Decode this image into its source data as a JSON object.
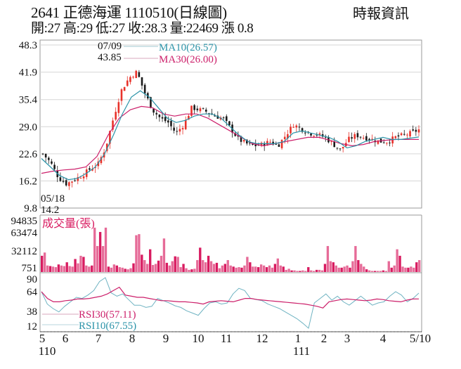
{
  "header": {
    "title": "2641  正德海運 1110510(日線圖)",
    "brand": "時報資訊",
    "ohlc_line": "開:27 高:29 低:27 收:28.3 量:22469 漲 0.8"
  },
  "colors": {
    "up": "#e8322a",
    "down": "#1a1a1a",
    "ma10": "#2b93a8",
    "ma30": "#cc1f6a",
    "volume": "#d81b60",
    "rsi30": "#cc1f6a",
    "rsi10": "#6fb3c2",
    "grid": "#d6d6d6"
  },
  "chart_data": [
    {
      "type": "candlestick",
      "title": "2641 正德海運 1110510(日線圖)",
      "panel": "price",
      "y_ticks": [
        48.3,
        41.9,
        35.4,
        29.0,
        22.6,
        16.2,
        9.8
      ],
      "ylim": [
        9.8,
        48.3
      ],
      "annotations": [
        {
          "label": "07/09",
          "value": "43.85",
          "type": "high"
        },
        {
          "label": "05/18",
          "value": "14.2",
          "type": "low"
        }
      ],
      "legend": [
        {
          "name": "MA10",
          "value": "MA10(26.57)"
        },
        {
          "name": "MA30",
          "value": "MA30(26.00)"
        }
      ],
      "last": {
        "open": 27,
        "high": 29,
        "low": 27,
        "close": 28.3,
        "volume": 22469,
        "change": 0.8
      },
      "x": [
        "5",
        "6",
        "7",
        "8",
        "9",
        "10",
        "11",
        "12",
        "1",
        "2",
        "3",
        "4",
        "5/10"
      ],
      "close_approx": [
        22.6,
        20.5,
        17.0,
        15.5,
        16.5,
        17.5,
        19.0,
        20.0,
        24.0,
        31.0,
        37.5,
        40.5,
        42.0,
        37.0,
        33.0,
        31.0,
        30.0,
        27.5,
        29.5,
        33.5,
        33.0,
        32.5,
        31.5,
        31.0,
        28.5,
        26.0,
        25.0,
        24.5,
        24.8,
        25.5,
        24.5,
        27.0,
        29.5,
        28.5,
        27.5,
        27.2,
        26.5,
        25.0,
        23.5,
        26.0,
        27.0,
        26.5,
        26.0,
        25.5,
        25.5,
        26.5,
        27.0,
        27.5,
        28.3
      ],
      "ma10_approx": [
        21.5,
        19.5,
        17.5,
        16.5,
        16.8,
        18.0,
        19.5,
        22.5,
        27.0,
        32.0,
        36.0,
        37.5,
        36.0,
        33.5,
        31.0,
        30.0,
        30.5,
        31.5,
        32.0,
        32.0,
        31.0,
        29.0,
        27.0,
        25.5,
        25.0,
        25.0,
        25.0,
        25.5,
        27.5,
        28.0,
        27.5,
        27.0,
        26.5,
        25.5,
        24.0,
        24.5,
        25.5,
        26.0,
        26.5,
        26.0,
        26.0,
        26.3,
        26.57
      ],
      "ma30_approx": [
        18.0,
        18.5,
        18.8,
        19.0,
        19.5,
        22.0,
        27.0,
        31.0,
        33.0,
        33.8,
        33.5,
        32.0,
        31.5,
        32.0,
        32.0,
        31.0,
        29.5,
        28.0,
        26.5,
        25.0,
        24.5,
        25.0,
        25.5,
        26.0,
        26.5,
        26.5,
        25.8,
        25.0,
        24.5,
        24.8,
        25.5,
        25.8,
        26.0,
        26.0,
        26.0
      ]
    },
    {
      "type": "bar",
      "panel": "volume",
      "title": "成交量(張)",
      "y_ticks": [
        94835,
        63474,
        32112,
        751
      ],
      "ylim": [
        751,
        94835
      ],
      "values_approx": [
        30000,
        36000,
        12000,
        11000,
        10000,
        9000,
        14000,
        12000,
        11000,
        18000,
        11000,
        10000,
        24000,
        16000,
        30000,
        28000,
        12000,
        10000,
        12000,
        82000,
        48000,
        74000,
        48000,
        82000,
        10000,
        8000,
        14000,
        12000,
        9000,
        8000,
        6000,
        5000,
        7000,
        16000,
        68000,
        70000,
        32000,
        22000,
        15000,
        42000,
        13000,
        15000,
        21000,
        30000,
        62000,
        17000,
        12000,
        20000,
        29000,
        28000,
        9000,
        15000,
        7000,
        4000,
        5000,
        6000,
        22000,
        45000,
        22000,
        18000,
        30000,
        20000,
        15000,
        17000,
        7000,
        12000,
        15000,
        22000,
        12000,
        10000,
        8000,
        9000,
        8000,
        12000,
        28000,
        18000,
        10000,
        10000,
        9000,
        14000,
        12000,
        9000,
        12000,
        8000,
        15000,
        25000,
        12000,
        10000,
        4000,
        6000,
        3000,
        3000,
        2000,
        2000,
        3000,
        2000,
        9000,
        3000,
        2000,
        4000,
        4000,
        3000,
        15000,
        48000,
        20000,
        18000,
        12000,
        8000,
        8000,
        10000,
        12000,
        8000,
        20000,
        48000,
        22000,
        15000,
        10000,
        5000,
        3000,
        2000,
        2000,
        2000,
        2000,
        3000,
        2000,
        20000,
        8000,
        12000,
        42000,
        30000,
        10000,
        8000,
        8000,
        10000,
        8000,
        18000,
        22000
      ]
    },
    {
      "type": "line",
      "panel": "rsi",
      "y_ticks": [
        90,
        64,
        38,
        12
      ],
      "ylim": [
        0,
        100
      ],
      "series": [
        {
          "name": "RSI30",
          "label": "RSI30(57.11)",
          "values_approx": [
            70,
            58,
            52,
            52,
            54,
            55,
            57,
            57,
            58,
            60,
            62,
            66,
            72,
            78,
            64,
            62,
            60,
            60,
            58,
            56,
            54,
            54,
            53,
            52,
            52,
            51,
            50,
            48,
            52,
            53,
            54,
            53,
            52,
            55,
            58,
            58,
            56,
            55,
            54,
            53,
            52,
            51,
            50,
            49,
            48,
            46,
            44,
            41,
            52,
            54,
            56,
            57,
            56,
            55,
            54,
            55,
            57,
            56,
            54,
            53,
            52,
            55,
            57,
            57.11
          ]
        },
        {
          "name": "RSI10",
          "label": "RSI10(67.55)",
          "values_approx": [
            70,
            48,
            40,
            34,
            44,
            52,
            60,
            58,
            64,
            72,
            88,
            95,
            68,
            62,
            66,
            56,
            46,
            46,
            42,
            44,
            58,
            54,
            50,
            45,
            42,
            36,
            32,
            28,
            40,
            50,
            52,
            48,
            50,
            66,
            76,
            72,
            58,
            56,
            54,
            48,
            44,
            40,
            34,
            28,
            22,
            14,
            5,
            50,
            58,
            66,
            55,
            62,
            52,
            46,
            54,
            62,
            54,
            46,
            50,
            52,
            62,
            70,
            64,
            52,
            58,
            67.55
          ]
        }
      ]
    }
  ],
  "price_panel": {
    "y_labels": [
      "48.3",
      "41.9",
      "35.4",
      "29.0",
      "22.6",
      "16.2",
      "9.8"
    ],
    "high_date": "07/09",
    "high_value": "43.85",
    "low_date": "05/18",
    "low_value": "14.2",
    "ma10_label": "MA10(26.57)",
    "ma30_label": "MA30(26.00)"
  },
  "volume_panel": {
    "title": "成交量(張)",
    "y_labels": [
      "94835",
      "63474",
      "32112",
      "751"
    ]
  },
  "rsi_panel": {
    "y_labels": [
      "90",
      "64",
      "38",
      "12"
    ],
    "rsi30_label": "RSI30(57.11)",
    "rsi10_label": "RSI10(67.55)"
  },
  "x_axis": {
    "labels": [
      "5",
      "6",
      "7",
      "8",
      "9",
      "10",
      "11",
      "12",
      "1",
      "2",
      "3",
      "4",
      "5/10"
    ],
    "year_labels": [
      {
        "text": "110",
        "under": "5"
      },
      {
        "text": "111",
        "under": "1"
      }
    ]
  }
}
